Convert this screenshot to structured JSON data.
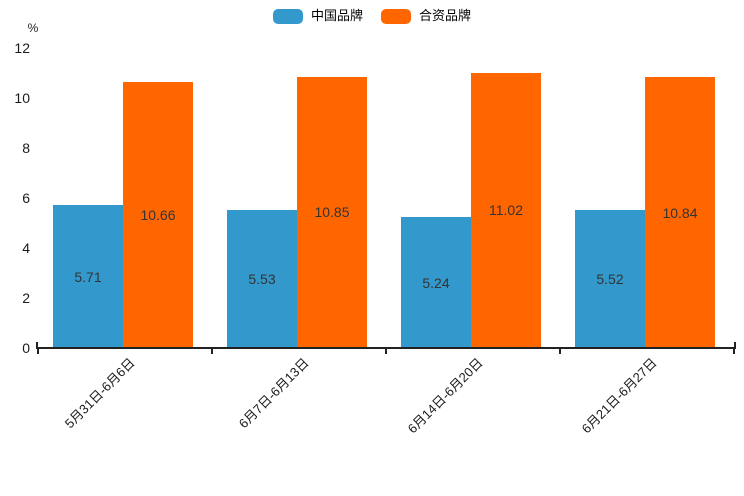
{
  "page": {
    "background": "#ffffff"
  },
  "y_axis": {
    "unit_label": "%",
    "tick_values": [
      0,
      2,
      4,
      6,
      8,
      10,
      12
    ]
  },
  "chart_data": {
    "type": "bar",
    "title": "",
    "xlabel": "",
    "ylabel": "%",
    "ylim": [
      0,
      12
    ],
    "y_tick_step": 2,
    "grid": false,
    "legend_position": "top-center",
    "value_labels": "inside-center",
    "x_tick_label_rotation_deg": 45,
    "categories": [
      "5月31日-6月6日",
      "6月7日-6月13日",
      "6月14日-6月20日",
      "6月21日-6月27日"
    ],
    "series": [
      {
        "name": "中国品牌",
        "color": "#3399cc",
        "values": [
          5.71,
          5.53,
          5.24,
          5.52
        ]
      },
      {
        "name": "合资品牌",
        "color": "#ff6600",
        "values": [
          10.66,
          10.85,
          11.02,
          10.84
        ]
      }
    ]
  },
  "colors": {
    "bar_blue": "#3399cc",
    "bar_orange": "#ff6600",
    "value_label": "#333333",
    "tick_label": "#1a1a1a",
    "axis_line": "#222222",
    "background": "#ffffff"
  }
}
